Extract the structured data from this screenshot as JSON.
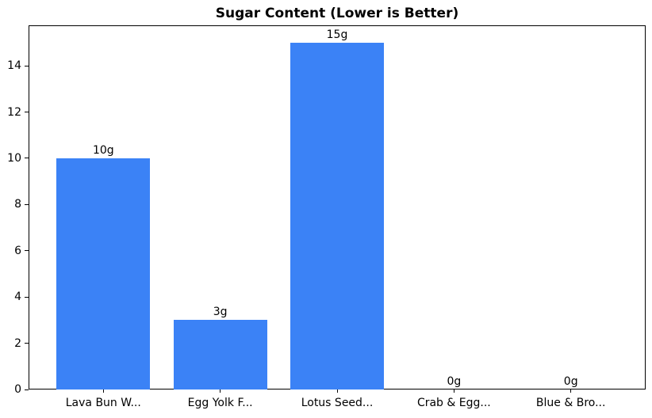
{
  "chart_data": {
    "type": "bar",
    "title": "Sugar Content (Lower is Better)",
    "categories": [
      "Lava Bun W...",
      "Egg Yolk F...",
      "Lotus Seed...",
      "Crab & Egg...",
      "Blue & Bro..."
    ],
    "values": [
      10,
      3,
      15,
      0,
      0
    ],
    "bar_labels": [
      "10g",
      "3g",
      "15g",
      "0g",
      "0g"
    ],
    "xlabel": "",
    "ylabel": "",
    "ylim": [
      0,
      15.75
    ],
    "yticks": [
      0,
      2,
      4,
      6,
      8,
      10,
      12,
      14
    ],
    "bar_color": "#3b82f6",
    "axis_color": "#000000",
    "background_color": "#ffffff",
    "grid": false,
    "legend": null
  }
}
